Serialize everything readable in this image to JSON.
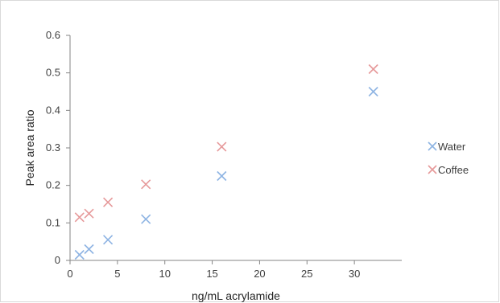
{
  "chart_data": {
    "type": "scatter",
    "title": "",
    "xlabel": "ng/mL acrylamide",
    "ylabel": "Peak area ratio",
    "xlim": [
      0,
      35
    ],
    "ylim": [
      0,
      0.6
    ],
    "x_ticks": [
      "0",
      "5",
      "10",
      "15",
      "20",
      "25",
      "30"
    ],
    "y_ticks": [
      "0",
      "0.1",
      "0.2",
      "0.3",
      "0.4",
      "0.5",
      "0.6"
    ],
    "grid": false,
    "legend_position": "right",
    "marker": "x",
    "series": [
      {
        "name": "Water",
        "color": "#8EB4E3",
        "points": [
          {
            "x": 1,
            "y": 0.015
          },
          {
            "x": 2,
            "y": 0.03
          },
          {
            "x": 4,
            "y": 0.055
          },
          {
            "x": 8,
            "y": 0.11
          },
          {
            "x": 16,
            "y": 0.225
          },
          {
            "x": 32,
            "y": 0.45
          }
        ]
      },
      {
        "name": "Coffee",
        "color": "#E6999A",
        "points": [
          {
            "x": 1,
            "y": 0.115
          },
          {
            "x": 2,
            "y": 0.125
          },
          {
            "x": 4,
            "y": 0.155
          },
          {
            "x": 8,
            "y": 0.203
          },
          {
            "x": 16,
            "y": 0.303
          },
          {
            "x": 32,
            "y": 0.51
          }
        ]
      }
    ]
  }
}
